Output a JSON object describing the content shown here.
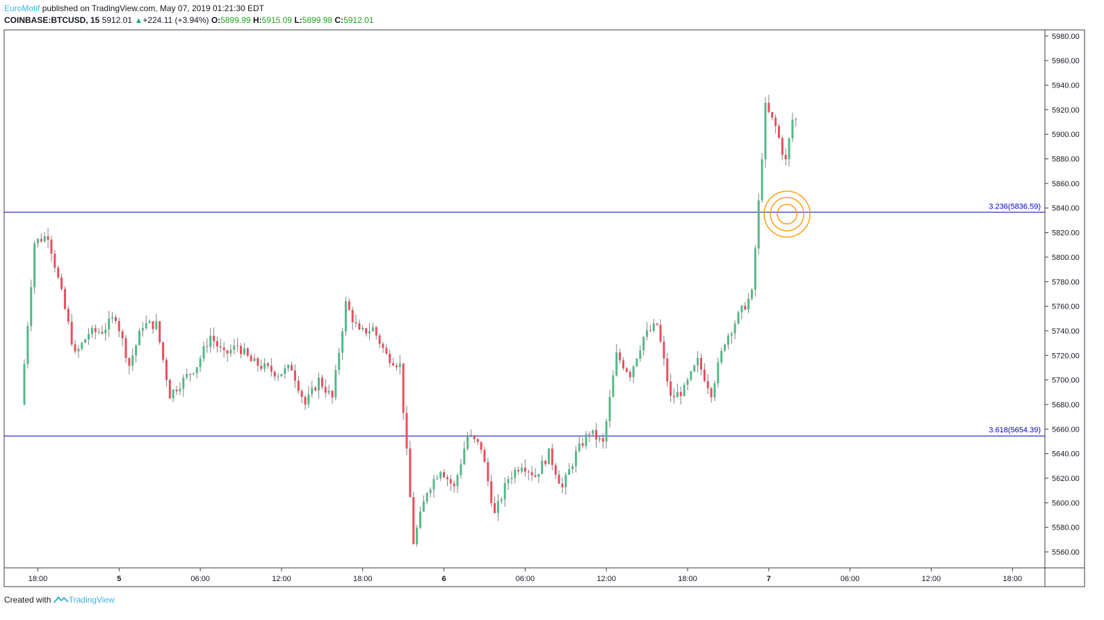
{
  "header": {
    "author": "EuroMotif",
    "published_text": "published on TradingView.com, May 07, 2019 01:21:30 EDT",
    "symbol": "COINBASE:BTCUSD, 15",
    "last": "5912.01",
    "change_arrow": "▲",
    "change": "+224.11 (+3.94%)",
    "o_label": "O:",
    "o_value": "5899.99",
    "h_label": "H:",
    "h_value": "5915.09",
    "l_label": "L:",
    "l_value": "5899.98",
    "c_label": "C:",
    "c_value": "5912.01"
  },
  "footer": {
    "created_with": "Created with",
    "brand": "TradingView"
  },
  "chart_data": {
    "type": "candlestick",
    "y_axis": {
      "min": 5547,
      "max": 5985,
      "ticks": [
        "5560.00",
        "5580.00",
        "5600.00",
        "5620.00",
        "5640.00",
        "5660.00",
        "5680.00",
        "5700.00",
        "5720.00",
        "5740.00",
        "5760.00",
        "5780.00",
        "5800.00",
        "5820.00",
        "5840.00",
        "5860.00",
        "5880.00",
        "5900.00",
        "5920.00",
        "5940.00",
        "5960.00",
        "5980.00"
      ]
    },
    "x_axis": {
      "labels": [
        {
          "text": "18:00",
          "hour": 1
        },
        {
          "text": "5",
          "hour": 7,
          "bold": true
        },
        {
          "text": "06:00",
          "hour": 13
        },
        {
          "text": "12:00",
          "hour": 19
        },
        {
          "text": "18:00",
          "hour": 25
        },
        {
          "text": "6",
          "hour": 31,
          "bold": true
        },
        {
          "text": "06:00",
          "hour": 37
        },
        {
          "text": "12:00",
          "hour": 43
        },
        {
          "text": "18:00",
          "hour": 49
        },
        {
          "text": "7",
          "hour": 55,
          "bold": true
        },
        {
          "text": "06:00",
          "hour": 61
        },
        {
          "text": "12:00",
          "hour": 67
        },
        {
          "text": "18:00",
          "hour": 73
        }
      ]
    },
    "levels": [
      {
        "label": "3.236(5836.59)",
        "value": 5836.59,
        "color": "#0000cc"
      },
      {
        "label": "3.618(5654.39)",
        "value": 5654.39,
        "color": "#0000cc"
      }
    ],
    "marker": {
      "value": 5835,
      "hour": 56.35,
      "color": "#ff9800"
    },
    "colors": {
      "up": "#53b987",
      "down": "#eb4d5c",
      "wick": "#7f7f7f"
    },
    "anchors": [
      [
        0,
        5680
      ],
      [
        1,
        5812
      ],
      [
        2,
        5818
      ],
      [
        3,
        5770
      ],
      [
        4,
        5720
      ],
      [
        5,
        5738
      ],
      [
        6,
        5740
      ],
      [
        7,
        5752
      ],
      [
        8,
        5712
      ],
      [
        9,
        5745
      ],
      [
        10,
        5745
      ],
      [
        11,
        5688
      ],
      [
        12,
        5700
      ],
      [
        13,
        5712
      ],
      [
        14,
        5736
      ],
      [
        15,
        5720
      ],
      [
        16,
        5728
      ],
      [
        17,
        5715
      ],
      [
        18,
        5710
      ],
      [
        19,
        5705
      ],
      [
        20,
        5710
      ],
      [
        21,
        5680
      ],
      [
        22,
        5700
      ],
      [
        23,
        5685
      ],
      [
        24,
        5762
      ],
      [
        25,
        5738
      ],
      [
        26,
        5742
      ],
      [
        27,
        5720
      ],
      [
        28,
        5712
      ],
      [
        29,
        5568
      ],
      [
        30,
        5610
      ],
      [
        31,
        5628
      ],
      [
        32,
        5612
      ],
      [
        33,
        5655
      ],
      [
        34,
        5645
      ],
      [
        35,
        5590
      ],
      [
        36,
        5620
      ],
      [
        37,
        5632
      ],
      [
        38,
        5622
      ],
      [
        39,
        5640
      ],
      [
        40,
        5612
      ],
      [
        41,
        5640
      ],
      [
        42,
        5658
      ],
      [
        43,
        5648
      ],
      [
        44,
        5720
      ],
      [
        45,
        5705
      ],
      [
        46,
        5735
      ],
      [
        47,
        5745
      ],
      [
        48,
        5685
      ],
      [
        49,
        5692
      ],
      [
        50,
        5715
      ],
      [
        51,
        5690
      ],
      [
        52,
        5732
      ],
      [
        53,
        5752
      ],
      [
        54,
        5770
      ],
      [
        54.5,
        5844
      ],
      [
        55,
        5922
      ],
      [
        55.8,
        5905
      ],
      [
        56.2,
        5888
      ],
      [
        56.5,
        5878
      ],
      [
        57,
        5912
      ]
    ]
  }
}
